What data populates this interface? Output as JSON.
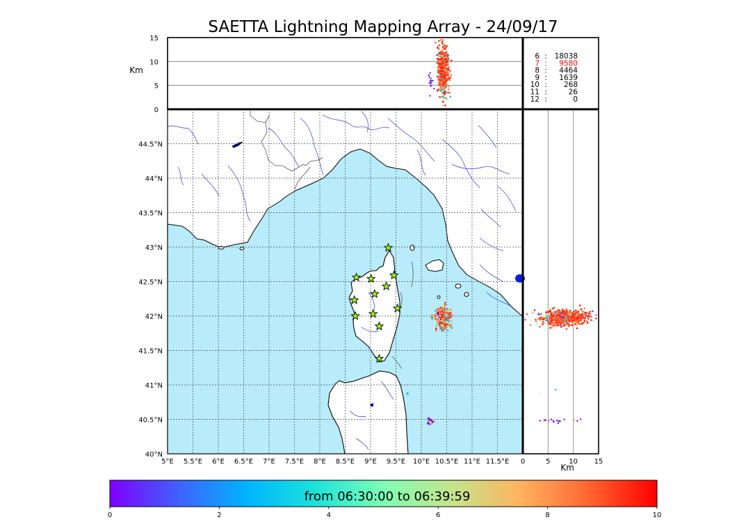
{
  "chart_data": {
    "type": "scatter",
    "title": "SAETTA Lightning Mapping Array - 24/09/17",
    "map": {
      "xlim": [
        5,
        12
      ],
      "ylim": [
        40,
        45
      ],
      "x_ticks": [
        "5°E",
        "5.5°E",
        "6°E",
        "6.5°E",
        "7°E",
        "7.5°E",
        "8°E",
        "8.5°E",
        "9°E",
        "9.5°E",
        "10°E",
        "10.5°E",
        "11°E",
        "11.5°E"
      ],
      "y_ticks": [
        "40°N",
        "40.5°N",
        "41°N",
        "41.5°N",
        "42°N",
        "42.5°N",
        "43°N",
        "43.5°N",
        "44°N",
        "44.5°N"
      ],
      "grid": true,
      "sea_color": "#b8ecfb",
      "land_color": "#ffffff",
      "river_color": "#3333dd",
      "stations_color": "#99ee22",
      "stations": [
        {
          "lon": 9.35,
          "lat": 42.99
        },
        {
          "lon": 8.72,
          "lat": 42.56
        },
        {
          "lon": 9.01,
          "lat": 42.54
        },
        {
          "lon": 9.46,
          "lat": 42.59
        },
        {
          "lon": 9.31,
          "lat": 42.43
        },
        {
          "lon": 9.08,
          "lat": 42.32
        },
        {
          "lon": 8.68,
          "lat": 42.23
        },
        {
          "lon": 9.53,
          "lat": 42.11
        },
        {
          "lon": 8.7,
          "lat": 42.0
        },
        {
          "lon": 9.05,
          "lat": 42.03
        },
        {
          "lon": 9.17,
          "lat": 41.85
        },
        {
          "lon": 9.17,
          "lat": 41.38
        }
      ],
      "clusters": [
        {
          "lon": 10.43,
          "lat": 41.97,
          "spread_lon": 0.07,
          "spread_lat": 0.08,
          "count": 360
        },
        {
          "lon": 10.18,
          "lat": 40.48,
          "spread_lon": 0.04,
          "spread_lat": 0.02,
          "count": 22
        },
        {
          "lon": 9.73,
          "lat": 40.88,
          "spread_lon": 0.01,
          "spread_lat": 0.01,
          "count": 2
        }
      ]
    },
    "altitude_panel": {
      "ylabel": "Km",
      "y_ticks": [
        "0",
        "5",
        "10",
        "15"
      ],
      "ylim": [
        0,
        15
      ],
      "gridlines_km": [
        5,
        10
      ],
      "points_center_km": 8,
      "points_range_km": [
        1,
        14
      ]
    },
    "side_panel": {
      "xlabel": "Km",
      "x_ticks": [
        "0",
        "5",
        "10",
        "15"
      ],
      "xlim": [
        0,
        15
      ],
      "gridlines_km": [
        5,
        10
      ]
    },
    "stats": [
      {
        "stations": "6",
        "count": "18038",
        "color": "#000000"
      },
      {
        "stations": "7",
        "count": "9580",
        "color": "#ff0000"
      },
      {
        "stations": "8",
        "count": "4464",
        "color": "#000000"
      },
      {
        "stations": "9",
        "count": "1639",
        "color": "#000000"
      },
      {
        "stations": "10",
        "count": "268",
        "color": "#000000"
      },
      {
        "stations": "11",
        "count": "26",
        "color": "#000000"
      },
      {
        "stations": "12",
        "count": "0",
        "color": "#000000"
      }
    ],
    "colorbar": {
      "label": "from 06:30:00 to 06:39:59",
      "ticks": [
        "0",
        "2",
        "4",
        "6",
        "8",
        "10"
      ],
      "range": [
        0,
        10
      ],
      "colors": [
        "#7f00ff",
        "#3f62ff",
        "#00b4ff",
        "#1ce3db",
        "#7ffdb4",
        "#c4e58c",
        "#ffb360",
        "#ff6630",
        "#ff0000"
      ]
    }
  }
}
